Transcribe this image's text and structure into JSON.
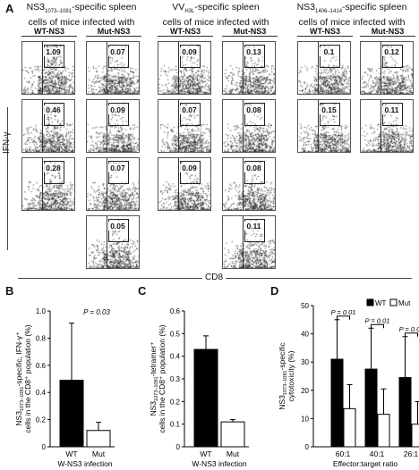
{
  "panel_a": {
    "letter": "A",
    "headers": [
      {
        "line1": "NS3",
        "sub1": "1073–1081",
        "line1b": "-specific spleen",
        "line2": "cells of mice infected with"
      },
      {
        "line1": "VV",
        "sub1": "H3L",
        "line1b": "-specific spleen",
        "line2": "cells of mice infected with"
      },
      {
        "line1": "NS3",
        "sub1": "1406–1414",
        "line1b": "-specific spleen",
        "line2": "cells of mice infected with"
      }
    ],
    "group_labels": [
      "WT-NS3",
      "Mut-NS3",
      "WT-NS3",
      "Mut-NS3",
      "WT-NS3",
      "Mut-NS3"
    ],
    "y_axis": "IFN-γ",
    "x_axis": "CD8",
    "columns": [
      [
        "1.09",
        "0.46",
        "0.28"
      ],
      [
        "0.07",
        "0.09",
        "0.07",
        "0.05"
      ],
      [
        "0.09",
        "0.07",
        "0.09"
      ],
      [
        "0.13",
        "0.08",
        "0.08",
        "0.11"
      ],
      [
        "0.1",
        "0.15"
      ],
      [
        "0.12",
        "0.11"
      ]
    ]
  },
  "chart_data": [
    {
      "panel": "B",
      "type": "bar",
      "categories": [
        "WT",
        "Mut"
      ],
      "values": [
        0.49,
        0.12
      ],
      "errors": [
        0.42,
        0.06
      ],
      "colors": [
        "#000000",
        "#ffffff"
      ],
      "ylabel_main": "NS3",
      "ylabel_sub": "1073–1081",
      "ylabel_rest": "-specific, IFN-γ⁺",
      "ylabel_line2": "cells in the CD8⁺ population (%)",
      "xlabel": "W-NS3 infection",
      "ylim": [
        0,
        1.0
      ],
      "yticks": [
        "0",
        "0.2",
        "0.4",
        "0.6",
        "0.8",
        "1.0"
      ],
      "annotation": "P = 0.03"
    },
    {
      "panel": "C",
      "type": "bar",
      "categories": [
        "WT",
        "Mut"
      ],
      "values": [
        0.43,
        0.11
      ],
      "errors": [
        0.06,
        0.01
      ],
      "colors": [
        "#000000",
        "#ffffff"
      ],
      "ylabel_main": "NS3",
      "ylabel_sub": "1073–1081",
      "ylabel_rest": "-tetramer⁺",
      "ylabel_line2": "cells in the CD8⁺ population (%)",
      "xlabel": "W-NS3 infection",
      "ylim": [
        0,
        0.6
      ],
      "yticks": [
        "0",
        "0.1",
        "0.2",
        "0.3",
        "0.4",
        "0.5",
        "0.6"
      ]
    },
    {
      "panel": "D",
      "type": "bar",
      "categories": [
        "60:1",
        "40:1",
        "26:1"
      ],
      "series": [
        {
          "name": "WT",
          "values": [
            31,
            27.5,
            24.5
          ],
          "errors": [
            14,
            14.5,
            14.5
          ],
          "color": "#000000"
        },
        {
          "name": "Mut",
          "values": [
            13.5,
            11.5,
            8
          ],
          "errors": [
            8.5,
            9,
            8
          ],
          "color": "#ffffff"
        }
      ],
      "ylabel_main": "NS3",
      "ylabel_sub": "1073–1081",
      "ylabel_rest": "-specific",
      "ylabel_line2": "cytotoxicity (%)",
      "xlabel": "Effector:target ratio",
      "ylim": [
        0,
        50
      ],
      "yticks": [
        "0",
        "10",
        "20",
        "30",
        "40",
        "50"
      ],
      "annotations": [
        "P = 0.01",
        "P = 0.01",
        "P = 0.01"
      ],
      "legend": "top-right"
    }
  ],
  "letters": {
    "b": "B",
    "c": "C",
    "d": "D"
  }
}
